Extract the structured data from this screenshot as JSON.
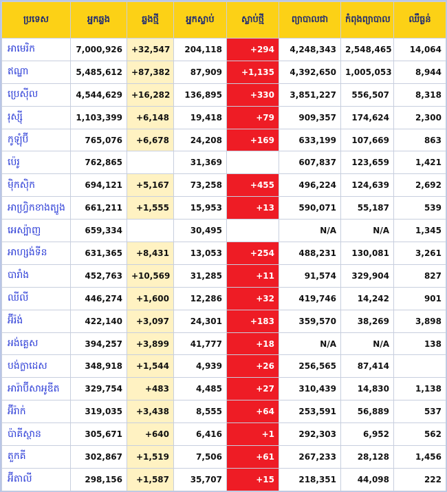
{
  "headers": [
    "ប្រទេស",
    "អ្នកឆ្លង",
    "ឆ្លងថ្មី",
    "អ្នកស្លាប់",
    "ស្លាប់ថ្មី",
    "ព្យាបាលជា",
    "កំពុងព្យាបាល",
    "ឈឺធ្ងន់"
  ],
  "rows": [
    {
      "country": "អាមេរិក",
      "cases": "7,000,926",
      "new_cases": "+32,547",
      "deaths": "204,118",
      "new_deaths": "+294",
      "recovered": "4,248,343",
      "active": "2,548,465",
      "critical": "14,064"
    },
    {
      "country": "ឥណ្ឌា",
      "cases": "5,485,612",
      "new_cases": "+87,382",
      "deaths": "87,909",
      "new_deaths": "+1,135",
      "recovered": "4,392,650",
      "active": "1,005,053",
      "critical": "8,944"
    },
    {
      "country": "ប្រេស៊ីល",
      "cases": "4,544,629",
      "new_cases": "+16,282",
      "deaths": "136,895",
      "new_deaths": "+330",
      "recovered": "3,851,227",
      "active": "556,507",
      "critical": "8,318"
    },
    {
      "country": "រុស្ស៊ី",
      "cases": "1,103,399",
      "new_cases": "+6,148",
      "deaths": "19,418",
      "new_deaths": "+79",
      "recovered": "909,357",
      "active": "174,624",
      "critical": "2,300"
    },
    {
      "country": "កូឡុំប៊ី",
      "cases": "765,076",
      "new_cases": "+6,678",
      "deaths": "24,208",
      "new_deaths": "+169",
      "recovered": "633,199",
      "active": "107,669",
      "critical": "863"
    },
    {
      "country": "ប៉េរូ",
      "cases": "762,865",
      "new_cases": "",
      "deaths": "31,369",
      "new_deaths": "",
      "recovered": "607,837",
      "active": "123,659",
      "critical": "1,421"
    },
    {
      "country": "ម៉ិកស៊ិក",
      "cases": "694,121",
      "new_cases": "+5,167",
      "deaths": "73,258",
      "new_deaths": "+455",
      "recovered": "496,224",
      "active": "124,639",
      "critical": "2,692"
    },
    {
      "country": "អាហ្វ្រិកខាងត្បូង",
      "cases": "661,211",
      "new_cases": "+1,555",
      "deaths": "15,953",
      "new_deaths": "+13",
      "recovered": "590,071",
      "active": "55,187",
      "critical": "539"
    },
    {
      "country": "អេស្ប៉ាញ",
      "cases": "659,334",
      "new_cases": "",
      "deaths": "30,495",
      "new_deaths": "",
      "recovered": "N/A",
      "active": "N/A",
      "critical": "1,345"
    },
    {
      "country": "អាហ្សង់ទីន",
      "cases": "631,365",
      "new_cases": "+8,431",
      "deaths": "13,053",
      "new_deaths": "+254",
      "recovered": "488,231",
      "active": "130,081",
      "critical": "3,261"
    },
    {
      "country": "បារាំង",
      "cases": "452,763",
      "new_cases": "+10,569",
      "deaths": "31,285",
      "new_deaths": "+11",
      "recovered": "91,574",
      "active": "329,904",
      "critical": "827"
    },
    {
      "country": "ឈីលី",
      "cases": "446,274",
      "new_cases": "+1,600",
      "deaths": "12,286",
      "new_deaths": "+32",
      "recovered": "419,746",
      "active": "14,242",
      "critical": "901"
    },
    {
      "country": "អ៊ីរ៉ង់",
      "cases": "422,140",
      "new_cases": "+3,097",
      "deaths": "24,301",
      "new_deaths": "+183",
      "recovered": "359,570",
      "active": "38,269",
      "critical": "3,898"
    },
    {
      "country": "អង់គ្លេស",
      "cases": "394,257",
      "new_cases": "+3,899",
      "deaths": "41,777",
      "new_deaths": "+18",
      "recovered": "N/A",
      "active": "N/A",
      "critical": "138"
    },
    {
      "country": "បង់ក្លាដេស",
      "cases": "348,918",
      "new_cases": "+1,544",
      "deaths": "4,939",
      "new_deaths": "+26",
      "recovered": "256,565",
      "active": "87,414",
      "critical": ""
    },
    {
      "country": "អារ៉ាប៊ីសាអូឌីត",
      "cases": "329,754",
      "new_cases": "+483",
      "deaths": "4,485",
      "new_deaths": "+27",
      "recovered": "310,439",
      "active": "14,830",
      "critical": "1,138"
    },
    {
      "country": "អ៊ីរ៉ាក់",
      "cases": "319,035",
      "new_cases": "+3,438",
      "deaths": "8,555",
      "new_deaths": "+64",
      "recovered": "253,591",
      "active": "56,889",
      "critical": "537"
    },
    {
      "country": "ប៉ាគីស្ថាន",
      "cases": "305,671",
      "new_cases": "+640",
      "deaths": "6,416",
      "new_deaths": "+1",
      "recovered": "292,303",
      "active": "6,952",
      "critical": "562"
    },
    {
      "country": "តួកគី",
      "cases": "302,867",
      "new_cases": "+1,519",
      "deaths": "7,506",
      "new_deaths": "+61",
      "recovered": "267,233",
      "active": "28,128",
      "critical": "1,456"
    },
    {
      "country": "អ៊ីតាលី",
      "cases": "298,156",
      "new_cases": "+1,587",
      "deaths": "35,707",
      "new_deaths": "+15",
      "recovered": "218,351",
      "active": "44,098",
      "critical": "222"
    }
  ],
  "colors": {
    "header_bg": "#fcd116",
    "header_text": "#1f2b73",
    "country_text": "#2a3bd6",
    "new_cases_bg": "#fff2c2",
    "new_deaths_bg": "#ee1c25",
    "frame": "#b9c6e6"
  }
}
